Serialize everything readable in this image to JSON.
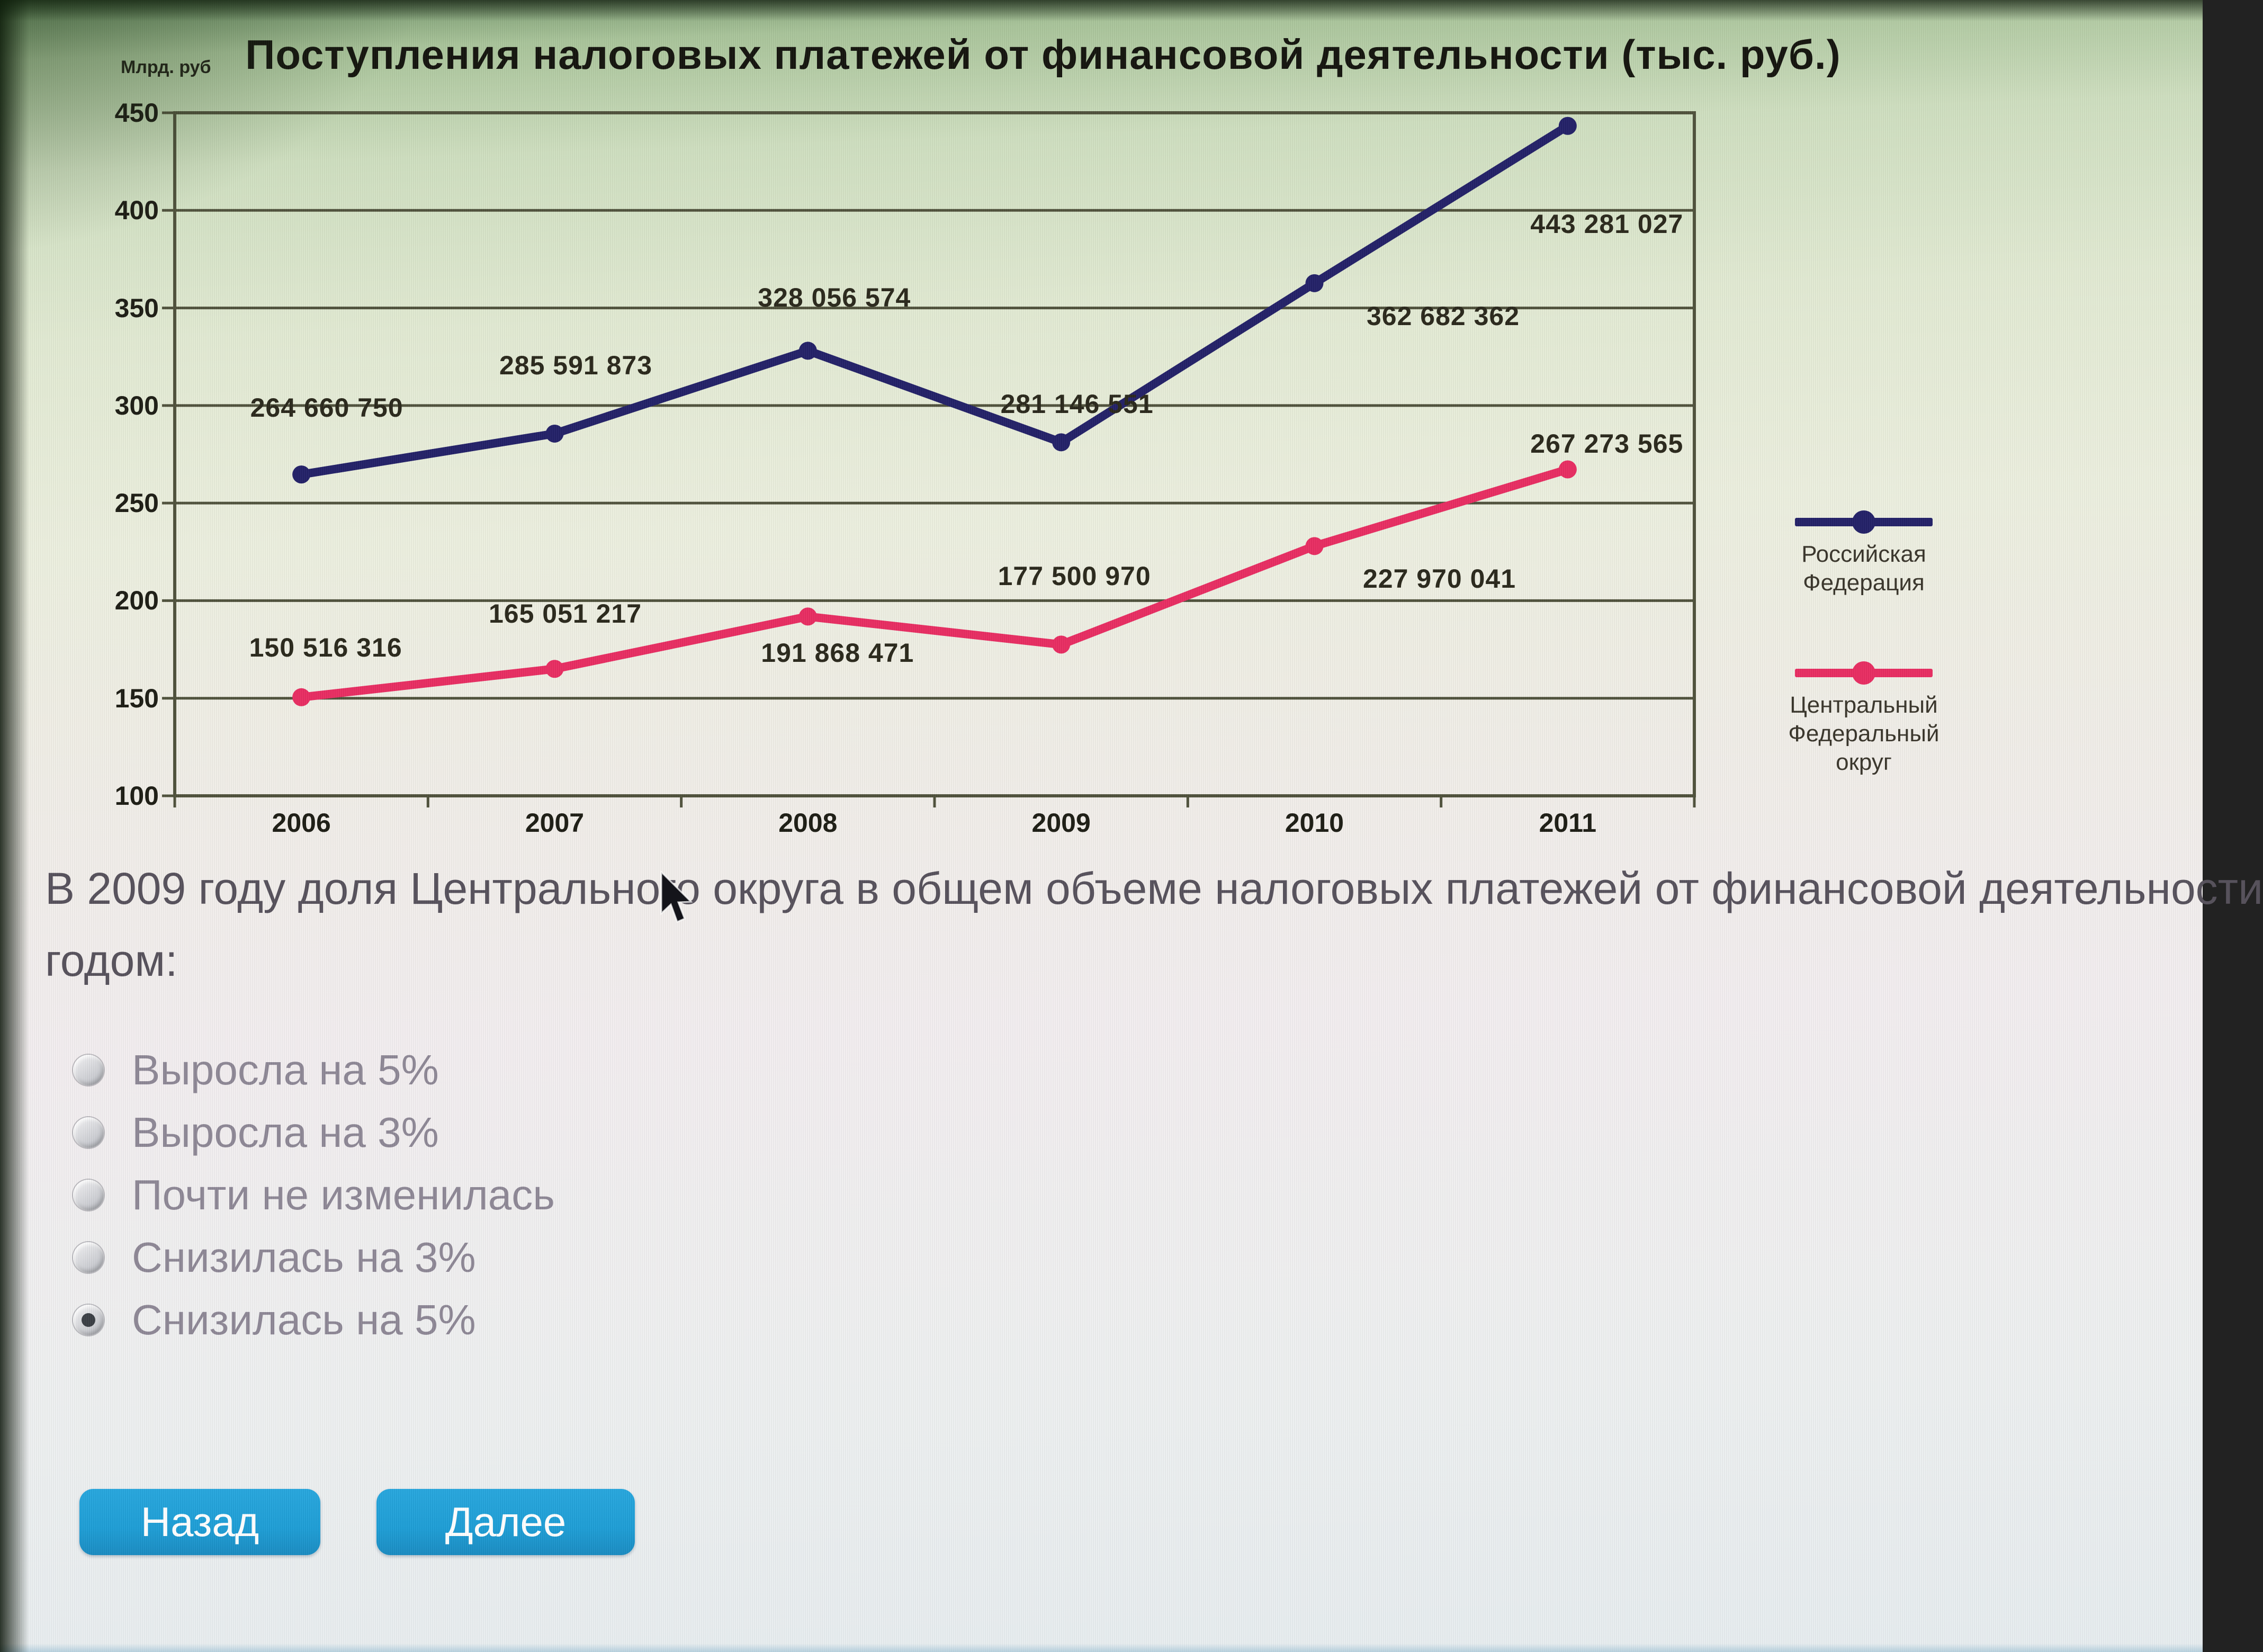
{
  "colors": {
    "rf_line": "#232168",
    "cfd_line": "#e82d62",
    "button_blue": "#1e9ed6",
    "button_text": "#ffffff",
    "grid_color": "#50523c",
    "question_text": "#57525c",
    "option_text": "#8e8896"
  },
  "chart": {
    "title": "Поступления налоговых платежей от финансовой деятельности (тыс. руб.)",
    "y_unit": "Млрд. руб"
  },
  "chart_data": {
    "type": "line",
    "title": "Поступления налоговых платежей от финансовой деятельности (тыс. руб.)",
    "ylabel": "Млрд. руб",
    "xlabel": "",
    "categories": [
      "2006",
      "2007",
      "2008",
      "2009",
      "2010",
      "2011"
    ],
    "ylim": [
      100,
      450
    ],
    "y_ticks": [
      100,
      150,
      200,
      250,
      300,
      350,
      400,
      450
    ],
    "grid": true,
    "legend_position": "right",
    "series": [
      {
        "name": "Российская Федерация",
        "color": "#232168",
        "values_thousand_rub": [
          264660750,
          285591873,
          328056574,
          281146551,
          362682362,
          443281027
        ],
        "values_bln": [
          264.66,
          285.59,
          328.06,
          281.15,
          362.68,
          443.28
        ],
        "labels": [
          "264 660 750",
          "285 591 873",
          "328 056 574",
          "281 146 551",
          "362 682 362",
          "443 281 027"
        ]
      },
      {
        "name": "Центральный Федеральный округ",
        "color": "#e82d62",
        "values_thousand_rub": [
          150516316,
          165051217,
          191868471,
          177500970,
          227970041,
          267273565
        ],
        "values_bln": [
          150.52,
          165.05,
          191.87,
          177.5,
          227.97,
          267.27
        ],
        "labels": [
          "150 516 316",
          "165 051 217",
          "191 868 471",
          "177 500 970",
          "227 970 041",
          "267 273 565"
        ]
      }
    ]
  },
  "legend": {
    "items": [
      {
        "label_lines": [
          "Российская",
          "Федерация"
        ]
      },
      {
        "label_lines": [
          "Центральный",
          "Федеральный округ"
        ]
      }
    ]
  },
  "question": {
    "line1": "В 2009 году доля Центрального округа в общем объеме налоговых платежей от финансовой деятельности",
    "line2": "годом:",
    "options": [
      {
        "label": "Выросла на 5%",
        "checked": false
      },
      {
        "label": "Выросла на 3%",
        "checked": false
      },
      {
        "label": "Почти не изменилась",
        "checked": false
      },
      {
        "label": "Снизилась на 3%",
        "checked": false
      },
      {
        "label": "Снизилась на 5%",
        "checked": true
      }
    ]
  },
  "buttons": {
    "back": "Назад",
    "next": "Далее"
  }
}
